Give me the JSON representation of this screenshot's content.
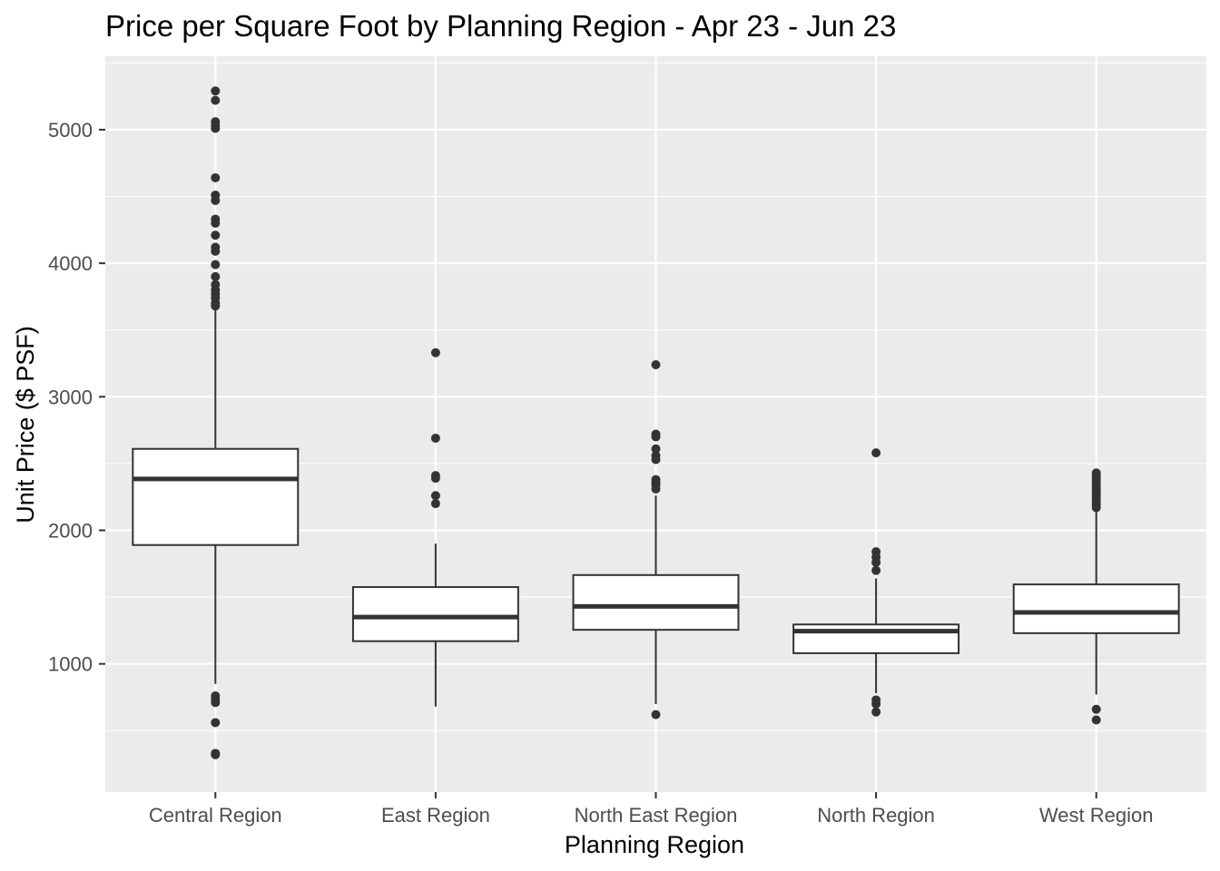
{
  "chart_data": {
    "type": "boxplot",
    "title": "Price per Square Foot by Planning Region - Apr 23 - Jun 23",
    "xlabel": "Planning Region",
    "ylabel": "Unit Price ($ PSF)",
    "ylim": [
      40,
      5550
    ],
    "yticks": [
      1000,
      2000,
      3000,
      4000,
      5000
    ],
    "grid": true,
    "colors": {
      "panel": "#ebebeb",
      "grid": "#ffffff",
      "box_fill": "#ffffff",
      "box_line": "#333333",
      "text": "#4d4d4d"
    },
    "categories": [
      "Central Region",
      "East Region",
      "North East Region",
      "North Region",
      "West Region"
    ],
    "boxes": [
      {
        "name": "Central Region",
        "whisker_low": 850,
        "q1": 1890,
        "median": 2385,
        "q3": 2610,
        "whisker_high": 3660,
        "outliers": [
          5290,
          5220,
          5060,
          5030,
          5010,
          4640,
          4510,
          4470,
          4330,
          4300,
          4210,
          4120,
          4090,
          3990,
          3900,
          3840,
          3800,
          3770,
          3740,
          3700,
          3680,
          760,
          730,
          710,
          560,
          330,
          320
        ]
      },
      {
        "name": "East Region",
        "whisker_low": 680,
        "q1": 1170,
        "median": 1350,
        "q3": 1575,
        "whisker_high": 1900,
        "outliers": [
          3330,
          2690,
          2410,
          2390,
          2260,
          2200
        ]
      },
      {
        "name": "North East Region",
        "whisker_low": 700,
        "q1": 1255,
        "median": 1430,
        "q3": 1665,
        "whisker_high": 2260,
        "outliers": [
          3240,
          2720,
          2700,
          2610,
          2560,
          2530,
          2380,
          2360,
          2340,
          2310,
          620
        ]
      },
      {
        "name": "North Region",
        "whisker_low": 780,
        "q1": 1080,
        "median": 1245,
        "q3": 1295,
        "whisker_high": 1640,
        "outliers": [
          2580,
          1840,
          1800,
          1760,
          1700,
          730,
          700,
          640
        ]
      },
      {
        "name": "West Region",
        "whisker_low": 770,
        "q1": 1230,
        "median": 1385,
        "q3": 1595,
        "whisker_high": 2150,
        "outliers": [
          2430,
          2410,
          2390,
          2370,
          2350,
          2330,
          2310,
          2290,
          2270,
          2250,
          2230,
          2210,
          2190,
          2170,
          660,
          580
        ]
      }
    ]
  }
}
